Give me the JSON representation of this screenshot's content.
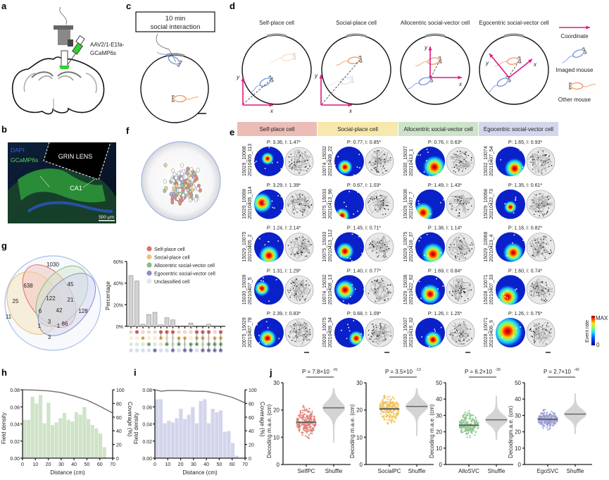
{
  "panel_labels": {
    "a": "a",
    "b": "b",
    "c": "c",
    "d": "d",
    "e": "e",
    "f": "f",
    "g": "g",
    "h": "h",
    "i": "i",
    "j": "j"
  },
  "a": {
    "virus_line1": "AAV2/1-E1fa-",
    "virus_line2": "GCaMP6s"
  },
  "b": {
    "dapi": "DAPI",
    "gcamp": "GCaMP6s",
    "lens": "GRIN LENS",
    "region": "CA1",
    "scale": "500 μm"
  },
  "c": {
    "box_line1": "10 min",
    "box_line2": "social interaction"
  },
  "d": {
    "titles": [
      "Self-place cell",
      "Social-place cell",
      "Allocentric social-vector cell",
      "Egocentric social-vector cell"
    ],
    "axis_x": "x",
    "axis_y": "y",
    "legend": {
      "coordinate": "Coordinate",
      "imaged": "Imaged mouse",
      "other": "Other mouse"
    },
    "colors": {
      "coordinate": "#e0197d",
      "imaged": "#6f8fd8",
      "other": "#f0955a"
    }
  },
  "e": {
    "columns": [
      {
        "title": "Self-place cell",
        "color": "#ecbcb6",
        "cells": [
          {
            "id1": "15029_10068",
            "id2": "20210405_113",
            "stats": "P: 3.36, I: 1.47*"
          },
          {
            "id1": "15029_10068",
            "id2": "20210405_114",
            "stats": "P: 3.29, I: 1.39*"
          },
          {
            "id1": "15029_10075",
            "id2": "20210405_2",
            "stats": "P: 1.24, I: 2.14*"
          },
          {
            "id1": "15030_15039",
            "id2": "20210407_5",
            "stats": "P: 1.31, I: 1.29*"
          },
          {
            "id1": "10075_15029",
            "id2": "20210407_78",
            "stats": "P: 2.39, I: 0.83*"
          }
        ]
      },
      {
        "title": "Social-place cell",
        "color": "#f7e9ad",
        "cells": [
          {
            "id1": "10074_15032",
            "id2": "20210408_22",
            "stats": "P: 0.77, I: 0.85*"
          },
          {
            "id1": "10075_15033",
            "id2": "20210413_96",
            "stats": "P: 0.67, I: 1.03*"
          },
          {
            "id1": "10075_15033",
            "id2": "20210413_112",
            "stats": "P: 1.45, I: 0.71*"
          },
          {
            "id1": "10074_15032",
            "id2": "20210408_13",
            "stats": "P: 1.40, I: 0.77*"
          },
          {
            "id1": "15030_10075",
            "id2": "20210409_34",
            "stats": "P: 0.68, I: 1.09*"
          }
        ]
      },
      {
        "title": "Allocentric social-vector cell",
        "color": "#cde3ca",
        "cells": [
          {
            "id1": "15030_15037",
            "id2": "20210413_1",
            "stats": "P: 0.76, I: 0.63*"
          },
          {
            "id1": "15029_15036",
            "id2": "20210407_7",
            "stats": "P: 1.49, I: 1.43*"
          },
          {
            "id1": "15029_10075",
            "id2": "20210416_37",
            "stats": "P: 1.38, I: 1.14*"
          },
          {
            "id1": "15029_15036",
            "id2": "20210422_92",
            "stats": "P: 1.69, I: 0.84*"
          },
          {
            "id1": "15030_15037",
            "id2": "20210416_32",
            "stats": "P: 1.26, I: 1.25*"
          }
        ]
      },
      {
        "title": "Egocentric social-vector cell",
        "color": "#d5d6ec",
        "cells": [
          {
            "id1": "15032_10074",
            "id2": "20210407_54",
            "stats": "P: 1.65, I: 0.93*"
          },
          {
            "id1": "15029_10068",
            "id2": "20210422_73",
            "stats": "P: 1.35, I: 0.61*"
          },
          {
            "id1": "15029_10068",
            "id2": "20210413_4",
            "stats": "P: 1.18, I: 0.82*"
          },
          {
            "id1": "15028_10071",
            "id2": "20210407_33",
            "stats": "P: 1.60, I: 0.74*"
          },
          {
            "id1": "15028_10071",
            "id2": "20210406_9",
            "stats": "P: 1.26, I: 0.75*"
          }
        ]
      }
    ],
    "colorbar": {
      "max": "MAX",
      "min": "0",
      "label": "Event rate"
    }
  },
  "g": {
    "venn_counts": {
      "unclassified_only": "1030",
      "self_only": "638",
      "social_only": "11",
      "allo_only": "45",
      "ego_only": "128",
      "self_social": "25",
      "self_allo": "122",
      "allo_ego": "21",
      "social_allo": "6",
      "self_allo_ego": "42",
      "social_allo_ego": "3",
      "social_allo_x": "1",
      "self_ego": "86",
      "self_social_ego": "1",
      "social_ego": "3"
    },
    "legend": [
      {
        "label": "Self-place cell",
        "color": "#d9736b"
      },
      {
        "label": "Social-place cell",
        "color": "#efc37a"
      },
      {
        "label": "Allocentric social-vector cell",
        "color": "#86bd84"
      },
      {
        "label": "Egocentric social-vector cell",
        "color": "#8a8cc8"
      },
      {
        "label": "Unclassified cell",
        "color": "#dfe5f2"
      }
    ],
    "ylabel": "Percentage",
    "yticks": [
      "0%",
      "20%",
      "40%",
      "60%"
    ]
  },
  "chart_data": [
    {
      "panel": "g",
      "type": "bar",
      "ylim": [
        0,
        60
      ],
      "yticks": [
        0,
        20,
        40,
        60
      ],
      "values": [
        47,
        42,
        2,
        11,
        13,
        1.5,
        8,
        6,
        0,
        0,
        3,
        0,
        0,
        2,
        0,
        0
      ],
      "membership": {
        "self": [
          1,
          5,
          6,
          7,
          11,
          12,
          13,
          15
        ],
        "social": [
          2,
          5,
          8,
          9,
          11,
          12,
          14,
          15
        ],
        "allo": [
          3,
          6,
          8,
          10,
          11,
          13,
          14,
          15
        ],
        "ego": [
          4,
          7,
          9,
          10,
          12,
          13,
          14,
          15
        ]
      }
    },
    {
      "panel": "h",
      "type": "bar",
      "xlabel": "Distance (cm)",
      "ylabel": "Field density",
      "y2label": "Coverage (%)",
      "xlim": [
        0,
        70
      ],
      "ylim": [
        0,
        0.08
      ],
      "y2lim": [
        0,
        100
      ],
      "xticks": [
        0,
        10,
        20,
        30,
        40,
        50,
        60,
        70
      ],
      "yticks": [
        "0.00",
        "0.02",
        "0.04",
        "0.06",
        "0.08"
      ],
      "y2ticks": [
        0,
        20,
        40,
        60,
        80,
        100
      ],
      "bin_width": 3.1,
      "color": "#cfe3c8",
      "values": [
        0.045,
        0.045,
        0.072,
        0.064,
        0.074,
        0.041,
        0.065,
        0.039,
        0.042,
        0.047,
        0.053,
        0.045,
        0.043,
        0.054,
        0.051,
        0.06,
        0.046,
        0.039,
        0.035,
        0.029,
        0.013
      ],
      "coverage": {
        "x": [
          0,
          10,
          20,
          30,
          40,
          50,
          60,
          70
        ],
        "y": [
          100,
          99.5,
          98.5,
          96,
          91,
          85,
          76,
          66
        ]
      }
    },
    {
      "panel": "i",
      "type": "bar",
      "xlabel": "Distance (cm)",
      "ylabel": "Field density",
      "y2label": "Coverage (%)",
      "xlim": [
        0,
        70
      ],
      "ylim": [
        0,
        0.08
      ],
      "y2lim": [
        0,
        100
      ],
      "xticks": [
        0,
        10,
        20,
        30,
        40,
        50,
        60,
        70
      ],
      "yticks": [
        "0.00",
        "0.02",
        "0.04",
        "0.06",
        "0.08"
      ],
      "y2ticks": [
        0,
        20,
        40,
        60,
        80,
        100
      ],
      "bin_width": 3.1,
      "color": "#d3d5ec",
      "values": [
        0.069,
        0.069,
        0.041,
        0.044,
        0.042,
        0.047,
        0.058,
        0.046,
        0.051,
        0.06,
        0.041,
        0.067,
        0.069,
        0.041,
        0.058,
        0.054,
        0.056,
        0.031,
        0.032,
        0.018,
        0.003
      ],
      "coverage": {
        "x": [
          0,
          5,
          10,
          20,
          30,
          40,
          50,
          60,
          70
        ],
        "y": [
          100,
          98,
          99,
          99,
          98,
          97.5,
          94,
          89,
          81
        ]
      }
    },
    {
      "panel": "j",
      "type": "scatter",
      "ylabel": "Decoding m.a.e. (cm)",
      "categories": [
        "SelfPC",
        "Shuffle"
      ],
      "p": "P = 7.8×10",
      "p_exp": "-91",
      "ylim": [
        0,
        30
      ],
      "yticks": [
        0,
        10,
        20,
        30
      ],
      "color": "#e07c74",
      "means": [
        15.5,
        20.8
      ],
      "ranges": [
        [
          7,
          24.5
        ],
        [
          8,
          28
        ]
      ]
    },
    {
      "panel": "j",
      "type": "scatter",
      "ylabel": "Decoding m.a.e. (cm)",
      "categories": [
        "SocialPC",
        "Shuffle"
      ],
      "p": "P = 3.5×10",
      "p_exp": "-13",
      "ylim": [
        0,
        30
      ],
      "yticks": [
        0,
        10,
        20,
        30
      ],
      "color": "#f0c25a",
      "means": [
        20.4,
        21.3
      ],
      "ranges": [
        [
          7,
          25.5
        ],
        [
          10.5,
          28
        ]
      ]
    },
    {
      "panel": "j",
      "type": "scatter",
      "ylabel": "Decoding m.a.e. (cm)",
      "categories": [
        "AlloSVC",
        "Shuffle"
      ],
      "p": "P = 6.2×10",
      "p_exp": "-39",
      "ylim": [
        0,
        50
      ],
      "yticks": [
        0,
        10,
        20,
        30,
        40,
        50
      ],
      "color": "#8cc88c",
      "means": [
        24,
        27.3
      ],
      "ranges": [
        [
          12,
          37.5
        ],
        [
          15,
          42
        ]
      ]
    },
    {
      "panel": "j",
      "type": "scatter",
      "ylabel": "Decodingm.a.e. (cm)",
      "categories": [
        "EgoSVC",
        "Shuffle"
      ],
      "p": "P = 2.7×10",
      "p_exp": "-42",
      "ylim": [
        0,
        50
      ],
      "yticks": [
        0,
        10,
        20,
        30,
        40,
        50
      ],
      "color": "#9a9cd6",
      "means": [
        27.7,
        30.8
      ],
      "ranges": [
        [
          17,
          36.5
        ],
        [
          18.5,
          43.5
        ]
      ]
    }
  ]
}
